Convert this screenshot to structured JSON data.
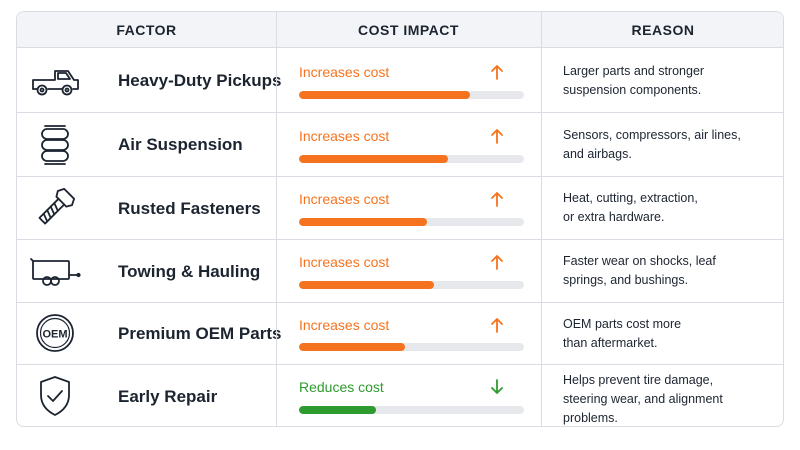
{
  "headers": {
    "factor": "FACTOR",
    "impact": "COST IMPACT",
    "reason": "REASON"
  },
  "colors": {
    "increase": "#f5731e",
    "reduce": "#2e9b2e",
    "track": "#e6e8eb"
  },
  "rows": [
    {
      "icon": "pickup-truck-icon",
      "factor": "Heavy-Duty Pickups",
      "impact": "Increases cost",
      "direction": "up",
      "level": 0.76,
      "reason": [
        "Larger parts and stronger",
        "suspension components."
      ]
    },
    {
      "icon": "air-suspension-icon",
      "factor": "Air Suspension",
      "impact": "Increases cost",
      "direction": "up",
      "level": 0.66,
      "reason": [
        "Sensors, compressors, air lines,",
        "and airbags."
      ]
    },
    {
      "icon": "bolt-icon",
      "factor": "Rusted Fasteners",
      "impact": "Increases cost",
      "direction": "up",
      "level": 0.57,
      "reason": [
        "Heat, cutting, extraction,",
        "or extra hardware."
      ]
    },
    {
      "icon": "trailer-icon",
      "factor": "Towing & Hauling",
      "impact": "Increases cost",
      "direction": "up",
      "level": 0.6,
      "reason": [
        "Faster wear on shocks, leaf",
        "springs, and bushings."
      ]
    },
    {
      "icon": "oem-badge-icon",
      "factor": "Premium OEM Parts",
      "impact": "Increases cost",
      "direction": "up",
      "level": 0.47,
      "reason": [
        "OEM parts cost more",
        "than aftermarket."
      ],
      "badge_text": "OEM"
    },
    {
      "icon": "shield-check-icon",
      "factor": "Early Repair",
      "impact": "Reduces cost",
      "direction": "down",
      "level": 0.34,
      "reason": [
        "Helps prevent tire damage,",
        "steering wear, and alignment",
        "problems."
      ]
    }
  ]
}
